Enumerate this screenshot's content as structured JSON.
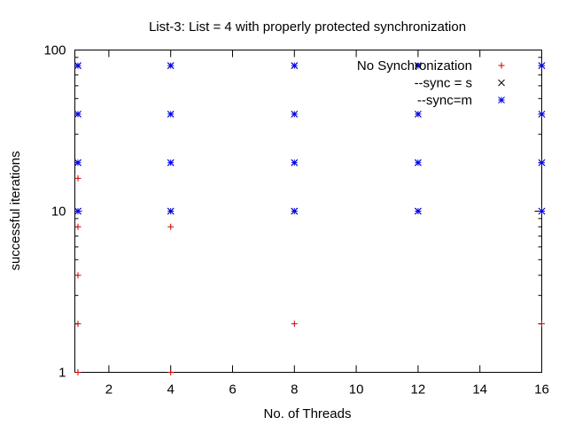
{
  "chart_data": {
    "type": "scatter",
    "title": "List-3: List = 4 with properly protected synchronization",
    "xlabel": "No. of Threads",
    "ylabel": "successful iterations",
    "xlim": [
      0.9,
      16
    ],
    "ylim": [
      1,
      100
    ],
    "yscale": "log",
    "xticks": [
      2,
      4,
      6,
      8,
      10,
      12,
      14,
      16
    ],
    "yticks": [
      1,
      10,
      100
    ],
    "grid": false,
    "legend_position": "top-right",
    "series": [
      {
        "name": "No Synchronization",
        "marker": "+",
        "color": "#cc0000",
        "points": [
          [
            1,
            1
          ],
          [
            1,
            2
          ],
          [
            1,
            4
          ],
          [
            1,
            8
          ],
          [
            1,
            16
          ],
          [
            4,
            1
          ],
          [
            4,
            8
          ],
          [
            8,
            2
          ],
          [
            16,
            2
          ]
        ]
      },
      {
        "name": "--sync = s",
        "marker": "x",
        "color": "#000000",
        "points": [
          [
            1,
            10
          ],
          [
            1,
            20
          ],
          [
            1,
            40
          ],
          [
            1,
            80
          ],
          [
            4,
            10
          ],
          [
            4,
            20
          ],
          [
            4,
            40
          ],
          [
            4,
            80
          ],
          [
            8,
            10
          ],
          [
            8,
            20
          ],
          [
            8,
            40
          ],
          [
            8,
            80
          ],
          [
            12,
            10
          ],
          [
            12,
            20
          ],
          [
            12,
            40
          ],
          [
            12,
            80
          ],
          [
            16,
            10
          ],
          [
            16,
            20
          ],
          [
            16,
            40
          ],
          [
            16,
            80
          ]
        ]
      },
      {
        "name": "--sync=m",
        "marker": "*",
        "color": "#0000ee",
        "points": [
          [
            1,
            10
          ],
          [
            1,
            20
          ],
          [
            1,
            40
          ],
          [
            1,
            80
          ],
          [
            4,
            10
          ],
          [
            4,
            20
          ],
          [
            4,
            40
          ],
          [
            4,
            80
          ],
          [
            8,
            10
          ],
          [
            8,
            20
          ],
          [
            8,
            40
          ],
          [
            8,
            80
          ],
          [
            12,
            10
          ],
          [
            12,
            20
          ],
          [
            12,
            40
          ],
          [
            12,
            80
          ],
          [
            16,
            10
          ],
          [
            16,
            20
          ],
          [
            16,
            40
          ],
          [
            16,
            80
          ]
        ]
      }
    ]
  }
}
